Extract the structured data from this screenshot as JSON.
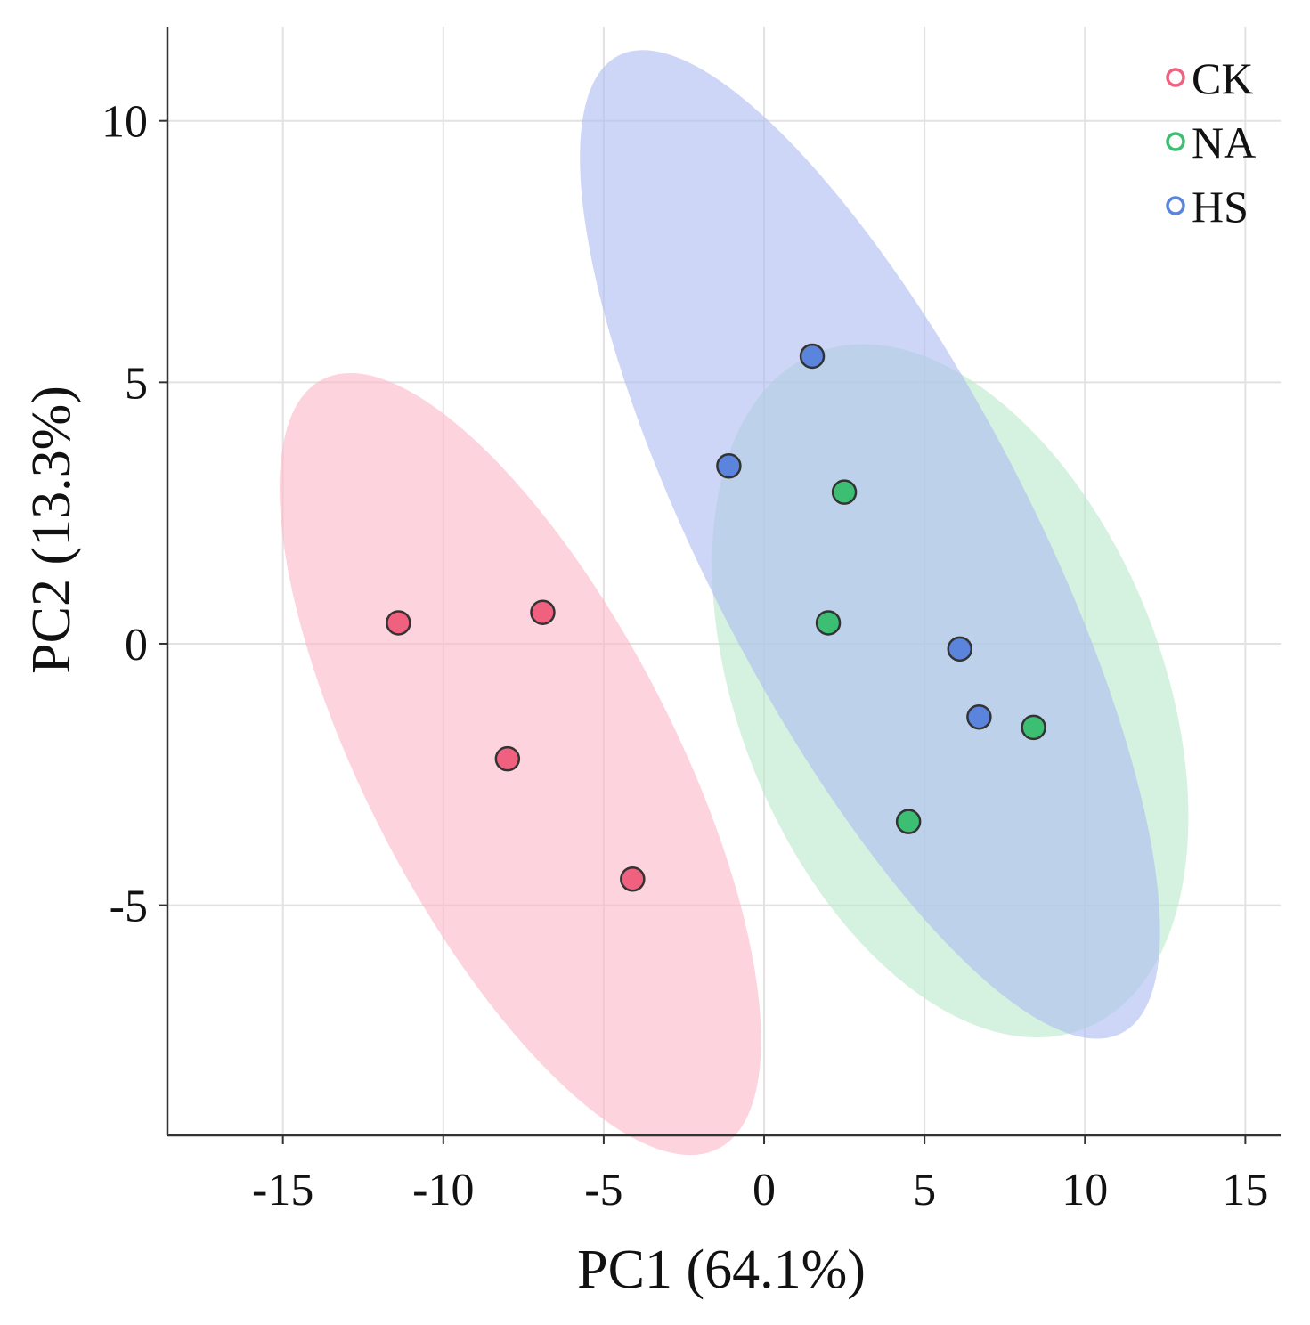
{
  "chart_data": {
    "type": "scatter",
    "title": "",
    "xlabel": "PC1 (64.1%)",
    "ylabel": "PC2 (13.3%)",
    "xlim": [
      -18.6,
      16.1
    ],
    "ylim": [
      -9.4,
      11.8
    ],
    "xticks": [
      -15,
      -10,
      -5,
      0,
      5,
      10,
      15
    ],
    "xtick_labels": [
      "-15",
      "-10",
      "-5",
      "0",
      "5",
      "10",
      "15"
    ],
    "yticks": [
      -5,
      0,
      5,
      10
    ],
    "ytick_labels": [
      "-5",
      "0",
      "5",
      "10"
    ],
    "grid": true,
    "legend_position": "top-right",
    "series": [
      {
        "name": "CK",
        "color": "#f0607f",
        "fill": "#fbb8ca",
        "points": [
          {
            "x": -11.4,
            "y": 0.4
          },
          {
            "x": -6.9,
            "y": 0.6
          },
          {
            "x": -8.0,
            "y": -2.2
          },
          {
            "x": -4.1,
            "y": -4.5
          }
        ],
        "ellipse": {
          "cx": -7.6,
          "cy": -2.3,
          "rx": 9.6,
          "ry": 3.7,
          "angle_deg": -50
        }
      },
      {
        "name": "NA",
        "color": "#3cbf72",
        "fill": "#bbe8cc",
        "points": [
          {
            "x": 2.5,
            "y": 2.9
          },
          {
            "x": 2.0,
            "y": 0.4
          },
          {
            "x": 8.4,
            "y": -1.6
          },
          {
            "x": 4.5,
            "y": -3.4
          }
        ],
        "ellipse": {
          "cx": 5.8,
          "cy": -0.9,
          "rx": 7.7,
          "ry": 5.4,
          "angle_deg": -57
        }
      },
      {
        "name": "HS",
        "color": "#5b84dd",
        "fill": "#aebdf0",
        "points": [
          {
            "x": 1.5,
            "y": 5.5
          },
          {
            "x": -1.1,
            "y": 3.4
          },
          {
            "x": 6.1,
            "y": -0.1
          },
          {
            "x": 6.7,
            "y": -1.4
          }
        ],
        "ellipse": {
          "cx": 3.3,
          "cy": 1.9,
          "rx": 12.2,
          "ry": 3.9,
          "angle_deg": -50
        }
      }
    ]
  }
}
